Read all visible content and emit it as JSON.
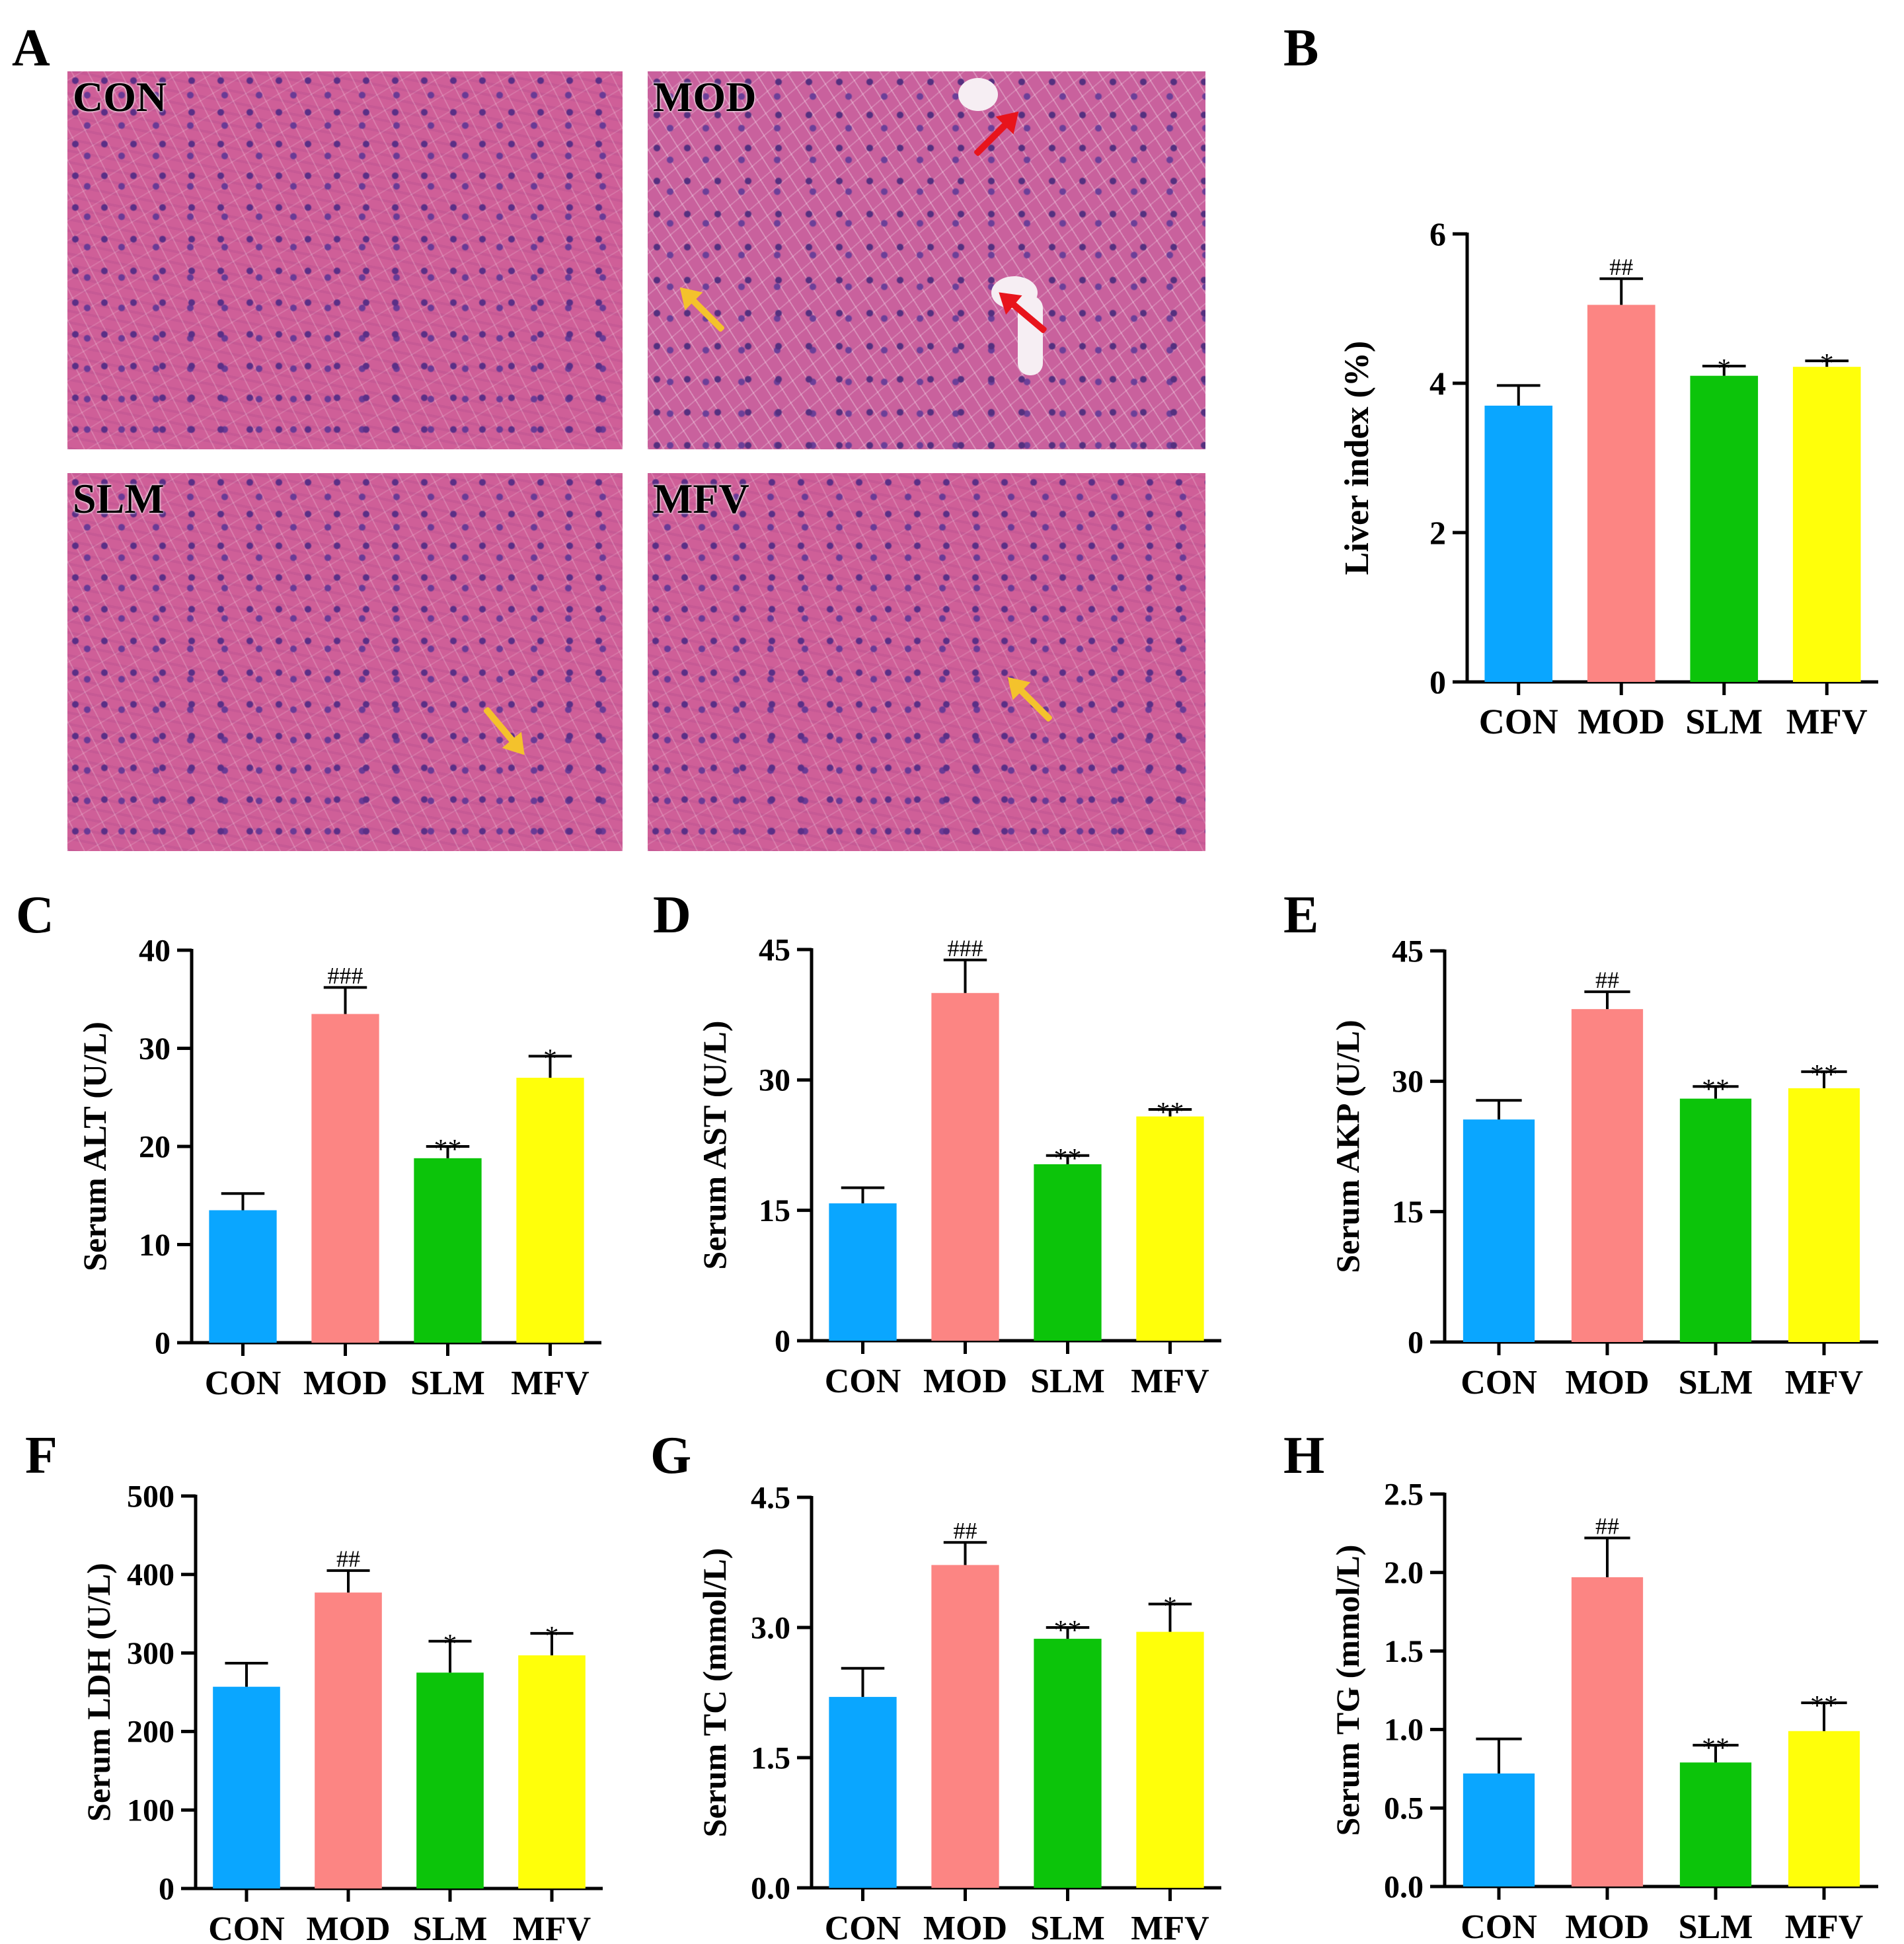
{
  "panel_letters": {
    "a": "A",
    "b": "B",
    "c": "C",
    "d": "D",
    "e": "E",
    "f": "F",
    "g": "G",
    "h": "H"
  },
  "micrographs": {
    "con": "CON",
    "mod": "MOD",
    "slm": "SLM",
    "mfv": "MFV",
    "colors": {
      "tissue": "#c8588f",
      "nuclei": "#5b2f86",
      "red_arrow": "#e8141c",
      "yellow_arrow": "#f4c22c"
    }
  },
  "chart_data": [
    {
      "id": "b",
      "type": "bar",
      "categories": [
        "CON",
        "MOD",
        "SLM",
        "MFV"
      ],
      "values": [
        3.7,
        5.05,
        4.1,
        4.22
      ],
      "errors": [
        0.27,
        0.35,
        0.13,
        0.08
      ],
      "sig": [
        "",
        "##",
        "*",
        "*"
      ],
      "ylabel": "Liver index (%)",
      "ylim": [
        0,
        6
      ],
      "ticks": [
        0,
        2,
        4,
        6
      ],
      "tick_labels": [
        "0",
        "2",
        "4",
        "6"
      ]
    },
    {
      "id": "c",
      "type": "bar",
      "categories": [
        "CON",
        "MOD",
        "SLM",
        "MFV"
      ],
      "values": [
        13.5,
        33.5,
        18.8,
        27.0
      ],
      "errors": [
        1.7,
        2.7,
        1.2,
        2.2
      ],
      "sig": [
        "",
        "###",
        "**",
        "*"
      ],
      "ylabel": "Serum ALT (U/L)",
      "ylim": [
        0,
        40
      ],
      "ticks": [
        0,
        10,
        20,
        30,
        40
      ],
      "tick_labels": [
        "0",
        "10",
        "20",
        "30",
        "40"
      ]
    },
    {
      "id": "d",
      "type": "bar",
      "categories": [
        "CON",
        "MOD",
        "SLM",
        "MFV"
      ],
      "values": [
        15.8,
        40.0,
        20.3,
        25.8
      ],
      "errors": [
        1.8,
        3.8,
        1.0,
        0.8
      ],
      "sig": [
        "",
        "###",
        "**",
        "**"
      ],
      "ylabel": "Serum AST (U/L)",
      "ylim": [
        0,
        45
      ],
      "ticks": [
        0,
        15,
        30,
        45
      ],
      "tick_labels": [
        "0",
        "15",
        "30",
        "45"
      ]
    },
    {
      "id": "e",
      "type": "bar",
      "categories": [
        "CON",
        "MOD",
        "SLM",
        "MFV"
      ],
      "values": [
        25.6,
        38.3,
        28.0,
        29.2
      ],
      "errors": [
        2.2,
        2.0,
        1.4,
        1.9
      ],
      "sig": [
        "",
        "##",
        "**",
        "**"
      ],
      "ylabel": "Serum AKP (U/L)",
      "ylim": [
        0,
        45
      ],
      "ticks": [
        0,
        15,
        30,
        45
      ],
      "tick_labels": [
        "0",
        "15",
        "30",
        "45"
      ]
    },
    {
      "id": "f",
      "type": "bar",
      "categories": [
        "CON",
        "MOD",
        "SLM",
        "MFV"
      ],
      "values": [
        257,
        377,
        275,
        297
      ],
      "errors": [
        30,
        28,
        40,
        28
      ],
      "sig": [
        "",
        "##",
        "*",
        "*"
      ],
      "ylabel": "Serum LDH (U/L)",
      "ylim": [
        0,
        500
      ],
      "ticks": [
        0,
        100,
        200,
        300,
        400,
        500
      ],
      "tick_labels": [
        "0",
        "100",
        "200",
        "300",
        "400",
        "500"
      ]
    },
    {
      "id": "g",
      "type": "bar",
      "categories": [
        "CON",
        "MOD",
        "SLM",
        "MFV"
      ],
      "values": [
        2.2,
        3.72,
        2.87,
        2.95
      ],
      "errors": [
        0.33,
        0.26,
        0.13,
        0.32
      ],
      "sig": [
        "",
        "##",
        "**",
        "*"
      ],
      "ylabel": "Serum TC (mmol/L)",
      "ylim": [
        0,
        4.5
      ],
      "ticks": [
        0,
        1.5,
        3.0,
        4.5
      ],
      "tick_labels": [
        "0.0",
        "1.5",
        "3.0",
        "4.5"
      ]
    },
    {
      "id": "h",
      "type": "bar",
      "categories": [
        "CON",
        "MOD",
        "SLM",
        "MFV"
      ],
      "values": [
        0.72,
        1.97,
        0.79,
        0.99
      ],
      "errors": [
        0.22,
        0.25,
        0.11,
        0.18
      ],
      "sig": [
        "",
        "##",
        "**",
        "**"
      ],
      "ylabel": "Serum TG (mmol/L)",
      "ylim": [
        0,
        2.5
      ],
      "ticks": [
        0,
        0.5,
        1.0,
        1.5,
        2.0,
        2.5
      ],
      "tick_labels": [
        "0.0",
        "0.5",
        "1.0",
        "1.5",
        "2.0",
        "2.5"
      ]
    }
  ],
  "bar_colors": [
    "#0aa6ff",
    "#fc8583",
    "#0cc40a",
    "#ffff0a"
  ]
}
